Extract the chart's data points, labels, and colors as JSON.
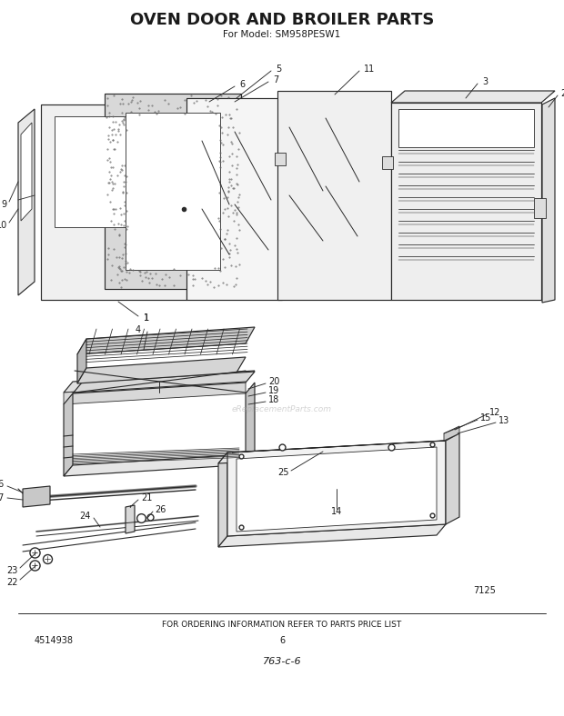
{
  "title": "OVEN DOOR AND BROILER PARTS",
  "subtitle": "For Model: SM958PESW1",
  "footer_text": "FOR ORDERING INFORMATION REFER TO PARTS PRICE LIST",
  "part_number": "4514938",
  "page_number": "6",
  "doc_number": "763-c-6",
  "diagram_number": "7125",
  "bg_color": "#ffffff",
  "line_color": "#2a2a2a",
  "label_color": "#1a1a1a",
  "title_fontsize": 13,
  "subtitle_fontsize": 7.5,
  "label_fontsize": 7.0
}
